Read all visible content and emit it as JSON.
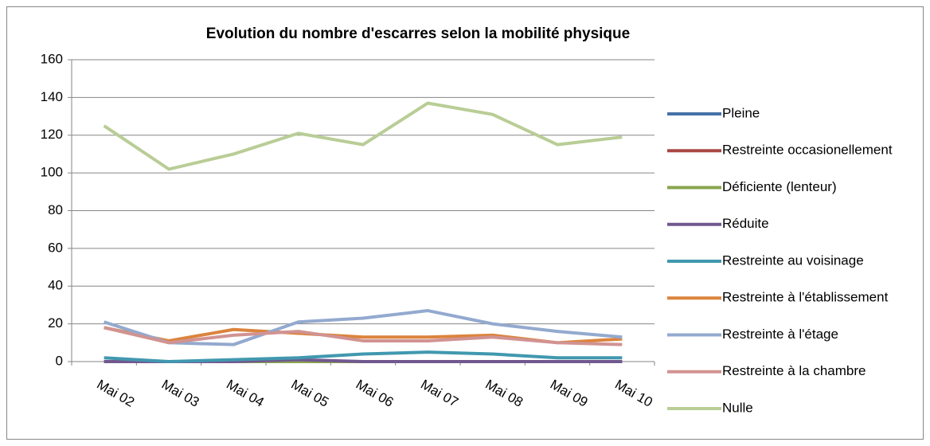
{
  "chart_data": {
    "type": "line",
    "title": "Evolution du nombre d'escarres selon la mobilité physique",
    "categories": [
      "Mai 02",
      "Mai 03",
      "Mai 04",
      "Mai 05",
      "Mai 06",
      "Mai 07",
      "Mai 08",
      "Mai 09",
      "Mai 10"
    ],
    "ylim": [
      0,
      160
    ],
    "yticks": [
      0,
      20,
      40,
      60,
      80,
      100,
      120,
      140,
      160
    ],
    "grid": true,
    "legend": "right",
    "series": [
      {
        "name": "Pleine",
        "color": "#4572a7",
        "values": [
          0,
          0,
          0,
          0,
          0,
          0,
          0,
          0,
          0
        ]
      },
      {
        "name": "Restreinte occasionellement",
        "color": "#aa4643",
        "values": [
          0,
          0,
          0,
          0,
          0,
          0,
          0,
          0,
          0
        ]
      },
      {
        "name": "Déficiente (lenteur)",
        "color": "#89a54e",
        "values": [
          0,
          0,
          0,
          0,
          0,
          0,
          0,
          0,
          0
        ]
      },
      {
        "name": "Réduite",
        "color": "#71588f",
        "values": [
          0,
          0,
          0,
          1,
          0,
          0,
          0,
          0,
          0
        ]
      },
      {
        "name": "Restreinte au voisinage",
        "color": "#4198af",
        "values": [
          2,
          0,
          1,
          2,
          4,
          5,
          4,
          2,
          2
        ]
      },
      {
        "name": "Restreinte à l'établissement",
        "color": "#db843d",
        "values": [
          18,
          11,
          17,
          15,
          13,
          13,
          14,
          10,
          12
        ]
      },
      {
        "name": "Restreinte à l'étage",
        "color": "#93a9cf",
        "values": [
          21,
          10,
          9,
          21,
          23,
          27,
          20,
          16,
          13
        ]
      },
      {
        "name": "Restreinte à la chambre",
        "color": "#d19392",
        "values": [
          18,
          10,
          14,
          16,
          11,
          11,
          13,
          10,
          9
        ]
      },
      {
        "name": "Nulle",
        "color": "#b9cd96",
        "values": [
          125,
          102,
          110,
          121,
          115,
          137,
          131,
          115,
          119
        ]
      }
    ]
  }
}
